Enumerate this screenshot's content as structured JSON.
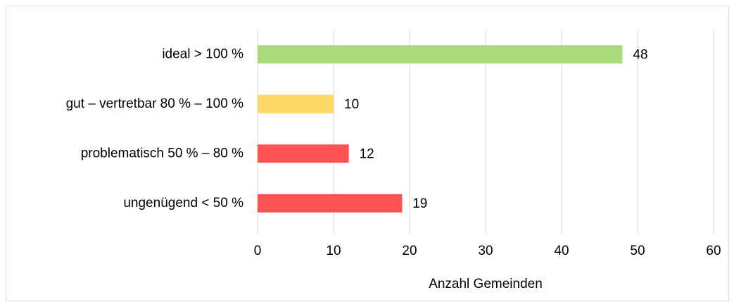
{
  "chart_data": {
    "type": "bar",
    "orientation": "horizontal",
    "categories": [
      "ideal > 100 %",
      "gut – vertretbar 80 % – 100 %",
      "problematisch 50 % – 80 %",
      "ungenügend < 50 %"
    ],
    "values": [
      48,
      10,
      12,
      19
    ],
    "colors": [
      "#a9d97a",
      "#ffd966",
      "#ff5252",
      "#ff5252"
    ],
    "xlabel": "Anzahl Gemeinden",
    "xlim": [
      0,
      60
    ],
    "xticks": [
      0,
      10,
      20,
      30,
      40,
      50,
      60
    ],
    "grid": true
  }
}
